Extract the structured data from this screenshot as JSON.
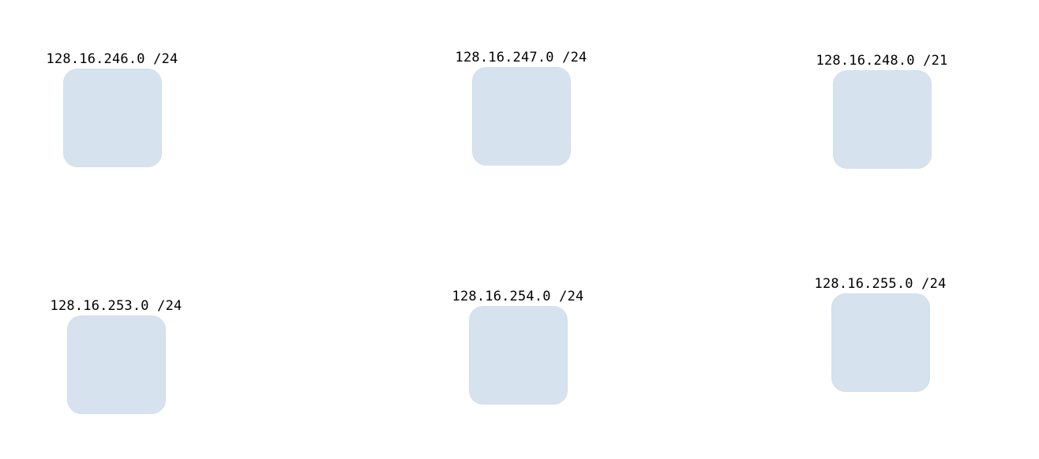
{
  "diagram": {
    "nodes": [
      {
        "id": "n1",
        "label": "128.16.246.0 /24",
        "fill": "#d6e2ee"
      },
      {
        "id": "n2",
        "label": "128.16.247.0 /24",
        "fill": "#d6e2ee"
      },
      {
        "id": "n3",
        "label": "128.16.248.0 /21",
        "fill": "#d6e2ee"
      },
      {
        "id": "n4",
        "label": "128.16.253.0 /24",
        "fill": "#d6e2ee"
      },
      {
        "id": "n5",
        "label": "128.16.254.0 /24",
        "fill": "#d6e2ee"
      },
      {
        "id": "n6",
        "label": "128.16.255.0 /24",
        "fill": "#d6e2ee"
      }
    ]
  }
}
